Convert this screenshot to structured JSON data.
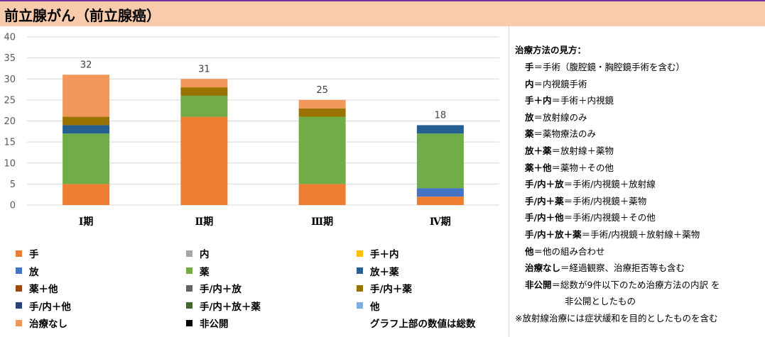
{
  "title": "前立腺がん（前立腺癌）",
  "chart_data": {
    "type": "bar",
    "stacked": true,
    "categories": [
      "Ⅰ期",
      "Ⅱ期",
      "Ⅲ期",
      "Ⅳ期"
    ],
    "totals": [
      32,
      31,
      25,
      18
    ],
    "ylim": [
      0,
      40
    ],
    "yticks": [
      0,
      5,
      10,
      15,
      20,
      25,
      30,
      35,
      40
    ],
    "grid": true,
    "series": [
      {
        "name": "手",
        "color": "#ed7d31",
        "values": [
          5,
          21,
          5,
          2
        ]
      },
      {
        "name": "内",
        "color": "#a5a5a5",
        "values": [
          0,
          0,
          0,
          0
        ]
      },
      {
        "name": "手＋内",
        "color": "#ffc000",
        "values": [
          0,
          0,
          0,
          0
        ]
      },
      {
        "name": "放",
        "color": "#4472c4",
        "values": [
          0,
          0,
          0,
          2
        ]
      },
      {
        "name": "薬",
        "color": "#70ad47",
        "values": [
          12,
          5,
          16,
          13
        ]
      },
      {
        "name": "放＋薬",
        "color": "#255e91",
        "values": [
          2,
          0,
          0,
          2
        ]
      },
      {
        "name": "薬＋他",
        "color": "#9e480e",
        "values": [
          0,
          0,
          0,
          0
        ]
      },
      {
        "name": "手/内＋放",
        "color": "#636363",
        "values": [
          0,
          0,
          0,
          0
        ]
      },
      {
        "name": "手/内＋薬",
        "color": "#997300",
        "values": [
          2,
          2,
          2,
          0
        ]
      },
      {
        "name": "手/内＋他",
        "color": "#264478",
        "values": [
          0,
          0,
          0,
          0
        ]
      },
      {
        "name": "手/内＋放＋薬",
        "color": "#43682b",
        "values": [
          0,
          0,
          0,
          0
        ]
      },
      {
        "name": "他",
        "color": "#7cafdd",
        "values": [
          0,
          0,
          0,
          0
        ]
      },
      {
        "name": "治療なし",
        "color": "#f1975a",
        "values": [
          10,
          2,
          2,
          0
        ]
      },
      {
        "name": "非公開",
        "color": "#000000",
        "values": [
          0,
          0,
          0,
          0
        ]
      }
    ]
  },
  "legend_note": "グラフ上部の数値は総数",
  "explanation": {
    "heading": "治療方法の見方：",
    "items": [
      {
        "key": "手",
        "text": "＝手術（腹腔鏡・胸腔鏡手術を含む）"
      },
      {
        "key": "内",
        "text": "＝内視鏡手術"
      },
      {
        "key": "手＋内",
        "text": "＝手術＋内視鏡"
      },
      {
        "key": "放",
        "text": "＝放射線のみ"
      },
      {
        "key": "薬",
        "text": "＝薬物療法のみ"
      },
      {
        "key": "放＋薬",
        "text": "＝放射線＋薬物"
      },
      {
        "key": "薬＋他",
        "text": "＝薬物＋その他"
      },
      {
        "key": "手/内＋放",
        "text": "＝手術/内視鏡＋放射線"
      },
      {
        "key": "手/内＋薬",
        "text": "＝手術/内視鏡＋薬物"
      },
      {
        "key": "手/内＋他",
        "text": "＝手術/内視鏡＋その他"
      },
      {
        "key": "手/内＋放＋薬",
        "text": "＝手術/内視鏡＋放射線＋薬物"
      },
      {
        "key": "他",
        "text": "＝他の組み合わせ"
      },
      {
        "key": "治療なし",
        "text": "＝経過観察、治療拒否等も含む"
      },
      {
        "key": "非公開",
        "text": "＝総数が9件以下のため治療方法の内訳 を"
      }
    ],
    "continuation": "非公開としたもの",
    "footnote": "※放射線治療には症状緩和を目的としたものを含む"
  }
}
